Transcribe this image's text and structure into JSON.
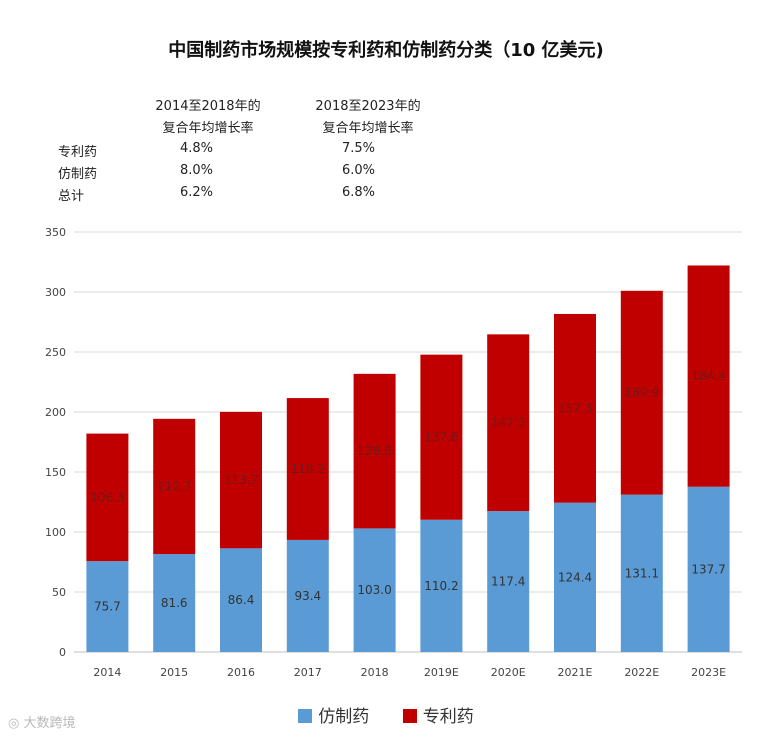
{
  "chart_data": {
    "type": "bar",
    "stacked": true,
    "title": "中国制药市场规模按专利药和仿制药分类（10 亿美元)",
    "categories": [
      "2014",
      "2015",
      "2016",
      "2017",
      "2018",
      "2019E",
      "2020E",
      "2021E",
      "2022E",
      "2023E"
    ],
    "series": [
      {
        "name": "仿制药",
        "color": "#5b9bd5",
        "values": [
          75.7,
          81.6,
          86.4,
          93.4,
          103.0,
          110.2,
          117.4,
          124.4,
          131.1,
          137.7
        ]
      },
      {
        "name": "专利药",
        "color": "#c00000",
        "values": [
          106.3,
          112.7,
          113.7,
          118.2,
          128.8,
          137.6,
          147.3,
          157.3,
          169.9,
          184.4
        ]
      }
    ],
    "ylim": [
      0,
      350
    ],
    "yticks": [
      0,
      50,
      100,
      150,
      200,
      250,
      300,
      350
    ],
    "grid": true,
    "legend": "bottom",
    "xlabel": "",
    "ylabel": ""
  },
  "cagr_table": {
    "col1_header": [
      "2014至2018年的",
      "复合年均增长率"
    ],
    "col2_header": [
      "2018至2023年的",
      "复合年均增长率"
    ],
    "rows": [
      {
        "label": "专利药",
        "v1": "4.8%",
        "v2": "7.5%"
      },
      {
        "label": "仿制药",
        "v1": "8.0%",
        "v2": "6.0%"
      },
      {
        "label": "总计",
        "v1": "6.2%",
        "v2": "6.8%"
      }
    ]
  },
  "watermark": "大数跨境"
}
